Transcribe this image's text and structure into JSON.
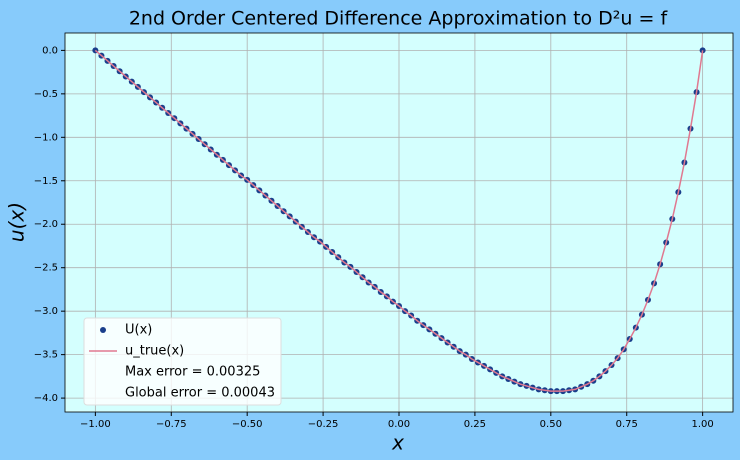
{
  "chart_data": {
    "type": "line",
    "title": "2nd Order Centered Difference Approximation to D²u = f",
    "x_label": "x",
    "y_label": "u(x)",
    "x": [
      -1.0,
      -0.98,
      -0.96,
      -0.94,
      -0.92,
      -0.9,
      -0.88,
      -0.86,
      -0.84,
      -0.82,
      -0.8,
      -0.78,
      -0.76,
      -0.74,
      -0.72,
      -0.7,
      -0.68,
      -0.66,
      -0.64,
      -0.62,
      -0.6,
      -0.58,
      -0.56,
      -0.54,
      -0.52,
      -0.5,
      -0.48,
      -0.46,
      -0.44,
      -0.42,
      -0.4,
      -0.38,
      -0.36,
      -0.34,
      -0.32,
      -0.3,
      -0.28,
      -0.26,
      -0.24,
      -0.22,
      -0.2,
      -0.18,
      -0.16,
      -0.14,
      -0.12,
      -0.1,
      -0.08,
      -0.06,
      -0.04,
      -0.02,
      0.0,
      0.02,
      0.04,
      0.06,
      0.08,
      0.1,
      0.12,
      0.14,
      0.16,
      0.18,
      0.2,
      0.22,
      0.24,
      0.26,
      0.28,
      0.3,
      0.32,
      0.34,
      0.36,
      0.38,
      0.4,
      0.42,
      0.44,
      0.46,
      0.48,
      0.5,
      0.52,
      0.54,
      0.56,
      0.58,
      0.6,
      0.62,
      0.64,
      0.66,
      0.68,
      0.7,
      0.72,
      0.74,
      0.76,
      0.78,
      0.8,
      0.82,
      0.84,
      0.86,
      0.88,
      0.9,
      0.92,
      0.94,
      0.96,
      0.98,
      1.0
    ],
    "series": [
      {
        "name": "U(x)",
        "mode": "marker",
        "color": "#1a3f8c",
        "values": [
          0,
          -0.06,
          -0.12,
          -0.18,
          -0.24,
          -0.3,
          -0.36,
          -0.42,
          -0.48,
          -0.54,
          -0.6,
          -0.66,
          -0.72,
          -0.78,
          -0.84,
          -0.9,
          -0.96,
          -1.02,
          -1.08,
          -1.14,
          -1.2,
          -1.26,
          -1.32,
          -1.38,
          -1.44,
          -1.49,
          -1.55,
          -1.61,
          -1.67,
          -1.73,
          -1.79,
          -1.85,
          -1.91,
          -1.97,
          -2.03,
          -2.09,
          -2.15,
          -2.2,
          -2.26,
          -2.32,
          -2.38,
          -2.44,
          -2.49,
          -2.55,
          -2.61,
          -2.67,
          -2.72,
          -2.78,
          -2.83,
          -2.89,
          -2.94,
          -3.0,
          -3.05,
          -3.11,
          -3.16,
          -3.21,
          -3.26,
          -3.31,
          -3.36,
          -3.41,
          -3.46,
          -3.5,
          -3.55,
          -3.59,
          -3.63,
          -3.67,
          -3.71,
          -3.75,
          -3.78,
          -3.81,
          -3.84,
          -3.86,
          -3.88,
          -3.9,
          -3.91,
          -3.92,
          -3.92,
          -3.92,
          -3.91,
          -3.9,
          -3.87,
          -3.84,
          -3.8,
          -3.75,
          -3.69,
          -3.62,
          -3.54,
          -3.44,
          -3.32,
          -3.19,
          -3.04,
          -2.87,
          -2.68,
          -2.46,
          -2.21,
          -1.94,
          -1.63,
          -1.29,
          -0.9,
          -0.48,
          0
        ]
      },
      {
        "name": "u_true(x)",
        "mode": "line",
        "color": "#e07890",
        "values": [
          0,
          -0.06,
          -0.12,
          -0.18,
          -0.24,
          -0.3,
          -0.36,
          -0.42,
          -0.48,
          -0.54,
          -0.6,
          -0.66,
          -0.72,
          -0.78,
          -0.84,
          -0.9,
          -0.96,
          -1.02,
          -1.08,
          -1.14,
          -1.2,
          -1.26,
          -1.32,
          -1.38,
          -1.44,
          -1.49,
          -1.55,
          -1.61,
          -1.67,
          -1.73,
          -1.79,
          -1.85,
          -1.91,
          -1.97,
          -2.03,
          -2.09,
          -2.15,
          -2.2,
          -2.26,
          -2.32,
          -2.38,
          -2.44,
          -2.49,
          -2.55,
          -2.61,
          -2.67,
          -2.72,
          -2.78,
          -2.83,
          -2.89,
          -2.94,
          -3.0,
          -3.05,
          -3.11,
          -3.16,
          -3.21,
          -3.26,
          -3.31,
          -3.36,
          -3.41,
          -3.46,
          -3.5,
          -3.55,
          -3.59,
          -3.63,
          -3.67,
          -3.71,
          -3.75,
          -3.78,
          -3.81,
          -3.84,
          -3.86,
          -3.88,
          -3.9,
          -3.91,
          -3.92,
          -3.92,
          -3.92,
          -3.91,
          -3.9,
          -3.87,
          -3.84,
          -3.8,
          -3.75,
          -3.69,
          -3.62,
          -3.54,
          -3.44,
          -3.32,
          -3.19,
          -3.04,
          -2.87,
          -2.68,
          -2.46,
          -2.21,
          -1.94,
          -1.63,
          -1.29,
          -0.9,
          -0.48,
          0
        ]
      }
    ],
    "legend_notes": [
      "Max error = 0.00325",
      "Global error = 0.00043"
    ],
    "legend": "lower left",
    "grid": true,
    "plot_background": "#d4fffe",
    "xlim": [
      -1.1,
      1.1
    ],
    "xticks": [
      {
        "value": -1.0,
        "label": "−1.00"
      },
      {
        "value": -0.75,
        "label": "−0.75"
      },
      {
        "value": -0.5,
        "label": "−0.50"
      },
      {
        "value": -0.25,
        "label": "−0.25"
      },
      {
        "value": 0,
        "label": "0.00"
      },
      {
        "value": 0.25,
        "label": "0.25"
      },
      {
        "value": 0.5,
        "label": "0.50"
      },
      {
        "value": 0.75,
        "label": "0.75"
      },
      {
        "value": 1.0,
        "label": "1.00"
      }
    ],
    "ylim": [
      -4.16,
      0.2
    ],
    "yticks": [
      {
        "value": 0,
        "label": "0.0"
      },
      {
        "value": -0.5,
        "label": "−0.5"
      },
      {
        "value": -1.0,
        "label": "−1.0"
      },
      {
        "value": -1.5,
        "label": "−1.5"
      },
      {
        "value": -2.0,
        "label": "−2.0"
      },
      {
        "value": -2.5,
        "label": "−2.5"
      },
      {
        "value": -3.0,
        "label": "−3.0"
      },
      {
        "value": -3.5,
        "label": "−3.5"
      },
      {
        "value": -4.0,
        "label": "−4.0"
      }
    ]
  }
}
